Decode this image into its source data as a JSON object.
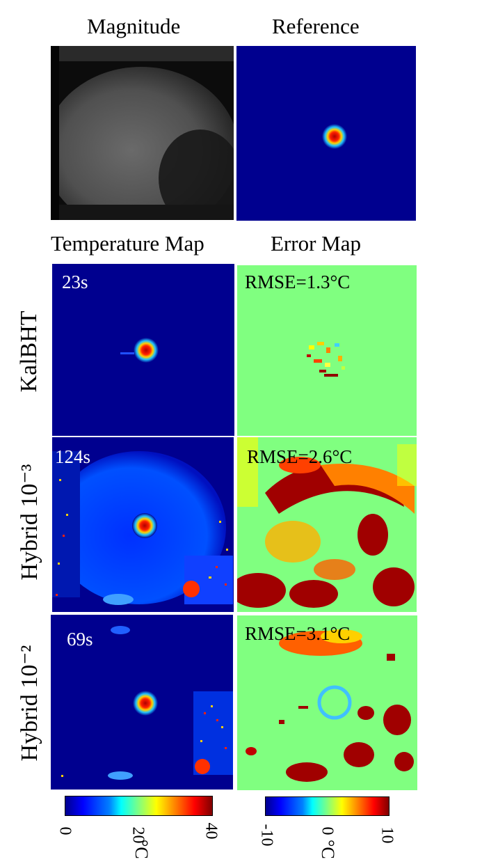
{
  "headers": {
    "magnitude": "Magnitude",
    "reference": "Reference",
    "temperature_map": "Temperature Map",
    "error_map": "Error Map"
  },
  "rows": [
    {
      "label": "KalBHT",
      "time": "23s",
      "rmse": "RMSE=1.3°C"
    },
    {
      "label": "Hybrid 10⁻³",
      "time": "124s",
      "rmse": "RMSE=2.6°C"
    },
    {
      "label": "Hybrid 10⁻²",
      "time": "69s",
      "rmse": "RMSE=3.1°C"
    }
  ],
  "colorbars": {
    "temperature": {
      "ticks": [
        "0",
        "20",
        "40"
      ],
      "unit": "°C",
      "range": [
        0,
        40
      ]
    },
    "error": {
      "ticks": [
        "-10",
        "0",
        "10"
      ],
      "unit": "°C",
      "range": [
        -10,
        10
      ]
    }
  },
  "colors": {
    "jet_dark_blue": "#00008f",
    "jet_green": "#80ff80",
    "jet_red": "#ff0000",
    "jet_dark_red": "#800000"
  }
}
